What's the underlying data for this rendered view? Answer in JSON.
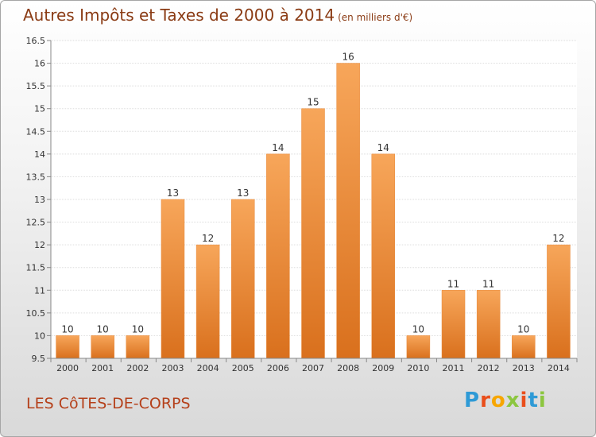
{
  "header": {
    "title": "Autres Impôts et Taxes de 2000 à 2014",
    "unit": "(en milliers d'€)"
  },
  "footer": {
    "commune": "LES CôTES-DE-CORPS",
    "logo": "Proxiti",
    "logo_colors": [
      "#2e9ad6",
      "#e94e1b",
      "#f7a600",
      "#8cc63f",
      "#e94e1b",
      "#2e9ad6",
      "#8cc63f"
    ]
  },
  "colors": {
    "bar_top": "#f7a65a",
    "bar_bottom": "#d9701d",
    "bar_side": "#e8893a",
    "grid": "#dddddd",
    "axis": "#888888"
  },
  "chart_data": {
    "type": "bar",
    "categories": [
      "2000",
      "2001",
      "2002",
      "2003",
      "2004",
      "2005",
      "2006",
      "2007",
      "2008",
      "2009",
      "2010",
      "2011",
      "2012",
      "2013",
      "2014"
    ],
    "values": [
      10,
      10,
      10,
      13,
      12,
      13,
      14,
      15,
      16,
      14,
      10,
      11,
      11,
      10,
      12
    ],
    "data_labels": [
      "10",
      "10",
      "10",
      "13",
      "12",
      "13",
      "14",
      "15",
      "16",
      "14",
      "10",
      "11",
      "11",
      "10",
      "12"
    ],
    "ylim": [
      9.5,
      16.5
    ],
    "yticks": [
      9.5,
      10,
      10.5,
      11,
      11.5,
      12,
      12.5,
      13,
      13.5,
      14,
      14.5,
      15,
      15.5,
      16,
      16.5
    ],
    "ytick_labels": [
      "9.5",
      "10",
      "10.5",
      "11",
      "11.5",
      "12",
      "12.5",
      "13",
      "13.5",
      "14",
      "14.5",
      "15",
      "15.5",
      "16",
      "16.5"
    ],
    "grid": true,
    "xlabel": "",
    "ylabel": ""
  }
}
